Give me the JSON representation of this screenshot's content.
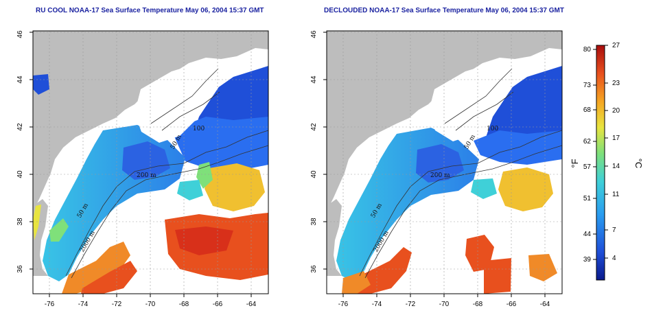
{
  "panels": [
    {
      "title": "RU COOL NOAA-17 Sea Surface Temperature May 06, 2004 15:37 GMT",
      "contour_labels": [
        "100",
        "50 m",
        "200 m",
        "50 m",
        "2000 m"
      ]
    },
    {
      "title": "DECLOUDED NOAA-17 Sea Surface Temperature May 06, 2004 15:37 GMT",
      "contour_labels": [
        "100",
        "50 m",
        "200 m",
        "50 m",
        "2000 m"
      ]
    }
  ],
  "axes": {
    "lon_ticks": [
      "-76",
      "-74",
      "-72",
      "-70",
      "-68",
      "-66",
      "-64"
    ],
    "lat_ticks": [
      "36",
      "38",
      "40",
      "42",
      "44",
      "46"
    ]
  },
  "colorbar": {
    "fahrenheit_unit": "°F",
    "celsius_unit": "°C",
    "fahrenheit_ticks": [
      "80",
      "73",
      "68",
      "62",
      "57",
      "51",
      "44",
      "39"
    ],
    "celsius_ticks": [
      "27",
      "23",
      "20",
      "17",
      "14",
      "11",
      "7",
      "4"
    ],
    "colors": [
      "#0a1a8c",
      "#1f4fd8",
      "#2a9df0",
      "#3fd0d8",
      "#7fe07a",
      "#e8e440",
      "#f5a623",
      "#e8501e",
      "#a80d0d"
    ]
  },
  "map_colors": {
    "land": "#bdbdbd",
    "cloud_mask": "#ffffff"
  }
}
